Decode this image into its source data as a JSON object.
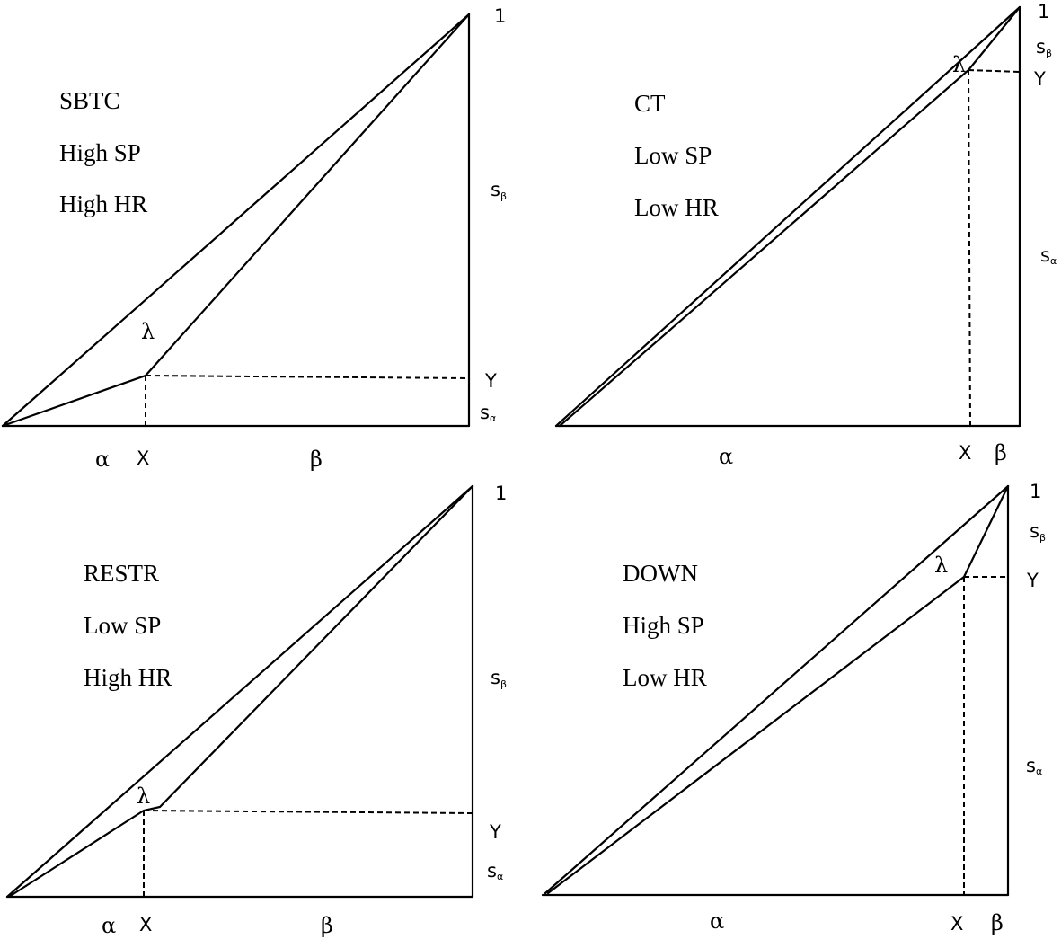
{
  "panels": {
    "tl": {
      "line1": "SBTC",
      "line2": "High SP",
      "line3": "High HR",
      "one": "1",
      "lambda": "λ",
      "y": "Y",
      "x": "X",
      "alpha": "α",
      "beta": "β",
      "s": "s",
      "sb": "β",
      "sa": "α"
    },
    "tr": {
      "line1": "CT",
      "line2": "Low SP",
      "line3": "Low HR",
      "one": "1",
      "lambda": "λ",
      "y": "Y",
      "x": "X",
      "alpha": "α",
      "beta": "β",
      "s": "s",
      "sb": "β",
      "sa": "α"
    },
    "bl": {
      "line1": "RESTR",
      "line2": "Low SP",
      "line3": "High HR",
      "one": "1",
      "lambda": "λ",
      "y": "Y",
      "x": "X",
      "alpha": "α",
      "beta": "β",
      "s": "s",
      "sb": "β",
      "sa": "α"
    },
    "br": {
      "line1": "DOWN",
      "line2": "High SP",
      "line3": "Low HR",
      "one": "1",
      "lambda": "λ",
      "y": "Y",
      "x": "X",
      "alpha": "α",
      "beta": "β",
      "s": "s",
      "sb": "β",
      "sa": "α"
    }
  }
}
